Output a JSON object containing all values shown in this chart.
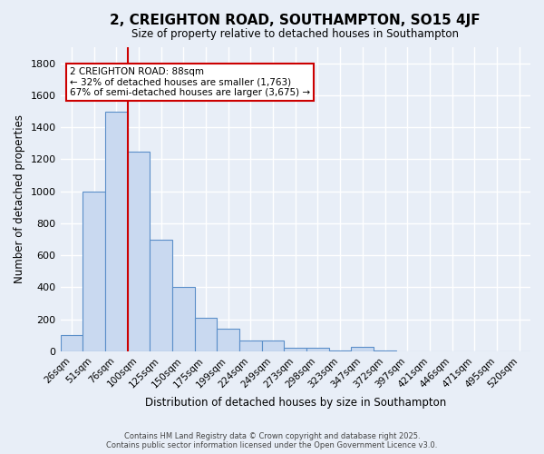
{
  "title": "2, CREIGHTON ROAD, SOUTHAMPTON, SO15 4JF",
  "subtitle": "Size of property relative to detached houses in Southampton",
  "xlabel": "Distribution of detached houses by size in Southampton",
  "ylabel": "Number of detached properties",
  "categories": [
    "26sqm",
    "51sqm",
    "76sqm",
    "100sqm",
    "125sqm",
    "150sqm",
    "175sqm",
    "199sqm",
    "224sqm",
    "249sqm",
    "273sqm",
    "298sqm",
    "323sqm",
    "347sqm",
    "372sqm",
    "397sqm",
    "421sqm",
    "446sqm",
    "471sqm",
    "495sqm",
    "520sqm"
  ],
  "values": [
    100,
    1000,
    1500,
    1250,
    700,
    400,
    210,
    140,
    65,
    65,
    25,
    20,
    5,
    30,
    5,
    0,
    0,
    0,
    0,
    0,
    0
  ],
  "bar_color": "#c9d9f0",
  "bar_edge_color": "#5b8fc9",
  "background_color": "#e8eef7",
  "grid_color": "#ffffff",
  "red_line_x": 2.5,
  "annotation_text": "2 CREIGHTON ROAD: 88sqm\n← 32% of detached houses are smaller (1,763)\n67% of semi-detached houses are larger (3,675) →",
  "annotation_box_color": "#ffffff",
  "annotation_box_edge_color": "#cc0000",
  "ylim": [
    0,
    1900
  ],
  "yticks": [
    0,
    200,
    400,
    600,
    800,
    1000,
    1200,
    1400,
    1600,
    1800
  ],
  "footer_line1": "Contains HM Land Registry data © Crown copyright and database right 2025.",
  "footer_line2": "Contains public sector information licensed under the Open Government Licence v3.0."
}
